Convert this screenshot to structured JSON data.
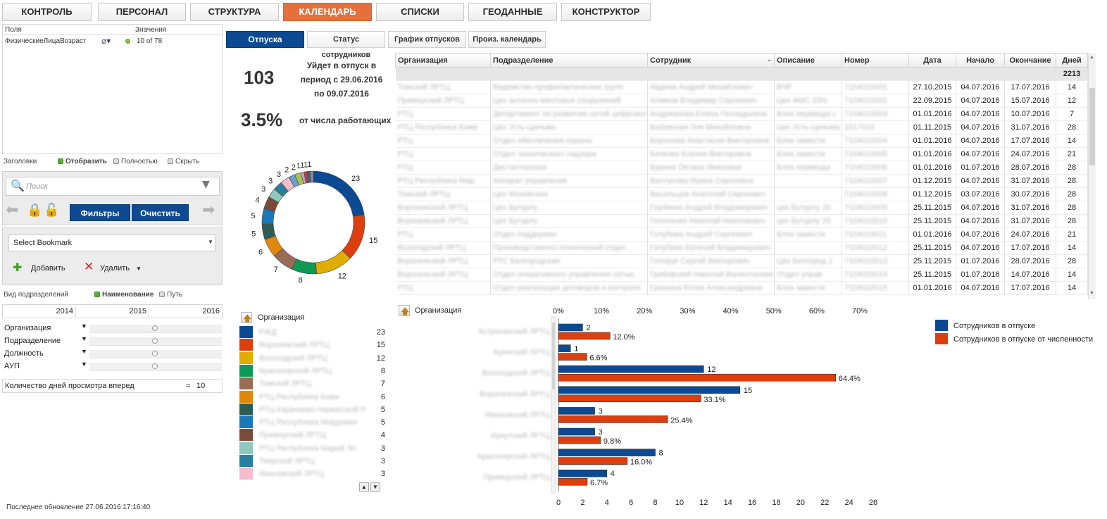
{
  "top_tabs": [
    {
      "label": "КОНТРОЛЬ",
      "active": false
    },
    {
      "label": "ПЕРСОНАЛ",
      "active": false
    },
    {
      "label": "СТРУКТУРА",
      "active": false
    },
    {
      "label": "КАЛЕНДАРЬ",
      "active": true
    },
    {
      "label": "СПИСКИ",
      "active": false
    },
    {
      "label": "ГЕОДАННЫЕ",
      "active": false
    },
    {
      "label": "КОНСТРУКТОР",
      "active": false
    }
  ],
  "fields_panel": {
    "col_fields": "Поля",
    "col_values": "Значения",
    "field_name": "ФизическиеЛицаВозраст",
    "field_value": "10 of 78"
  },
  "headers_option": {
    "label": "Заголовки",
    "options": [
      "Отобразить",
      "Полностью",
      "Скрыть"
    ],
    "selected": "Отобразить"
  },
  "search": {
    "placeholder": "Поиск"
  },
  "buttons": {
    "filters": "Фильтры",
    "clear": "Очистить",
    "add": "Добавить",
    "delete": "Удалить"
  },
  "bookmark": {
    "value": "Select Bookmark"
  },
  "division_view": {
    "label": "Вид подразделений",
    "options": [
      "Наименование",
      "Путь"
    ],
    "selected": "Наименование"
  },
  "years": [
    "2014",
    "2015",
    "2016"
  ],
  "dimensions": [
    "Организация",
    "Подразделение",
    "Должность",
    "АУП"
  ],
  "lookahead": {
    "label": "Количество дней просмотра вперед",
    "operator": "=",
    "value": "10"
  },
  "last_update": "Последнее обновление 27.06.2016 17:16:40",
  "sub_tabs": [
    {
      "label": "Отпуска",
      "active": true
    },
    {
      "label": "Статус сотрудников",
      "active": false
    },
    {
      "label": "График отпусков",
      "active": false
    },
    {
      "label": "Произ. календарь",
      "active": false
    }
  ],
  "kpi": {
    "count": "103",
    "count_text": [
      "Уйдет в отпуск в",
      "период с 29.06.2016",
      "по 09.07.2016"
    ],
    "percent": "3.5%",
    "percent_text": "от числа работающих"
  },
  "colors": {
    "accent_orange": "#e5703c",
    "blue": "#0d4a92",
    "red": "#dd3e0e"
  },
  "donut": {
    "values": [
      23,
      15,
      12,
      8,
      7,
      6,
      5,
      5,
      4,
      3,
      3,
      3,
      2,
      2,
      1,
      1,
      1,
      1
    ],
    "colors": [
      "#0b4a93",
      "#dd3e0e",
      "#e0ad00",
      "#0e9a55",
      "#9a6b55",
      "#e0880c",
      "#2f5b55",
      "#1a77ba",
      "#7a4a3a",
      "#8ec9be",
      "#2a7fa0",
      "#f6bccc",
      "#6aa0d0",
      "#a9c64c",
      "#c8a0c8",
      "#c04040",
      "#406090",
      "#909090"
    ],
    "labels": [
      "23",
      "15",
      "12",
      "8",
      "7",
      "6",
      "5",
      "5",
      "4",
      "3",
      "3",
      "3",
      "2",
      "2",
      "1",
      "1",
      "1",
      "1"
    ]
  },
  "org_legend": {
    "title": "Организация",
    "items": [
      {
        "name": "РЖД",
        "value": "23",
        "color": "#0b4a93"
      },
      {
        "name": "Воронежский ЛРТЦ",
        "value": "15",
        "color": "#dd3e0e"
      },
      {
        "name": "Вологодский ЛРТЦ",
        "value": "12",
        "color": "#e0ad00"
      },
      {
        "name": "Красноярский ЛРТЦ",
        "value": "8",
        "color": "#0e9a55"
      },
      {
        "name": "Томский ЛРТЦ",
        "value": "7",
        "color": "#9a6b55"
      },
      {
        "name": "РТЦ Республика Коми",
        "value": "6",
        "color": "#e0880c"
      },
      {
        "name": "РТЦ Карачаево-Черкесской Р.",
        "value": "5",
        "color": "#2f5b55"
      },
      {
        "name": "РТЦ Республика Мордовия",
        "value": "5",
        "color": "#1a77ba"
      },
      {
        "name": "Приморский ЛРТЦ",
        "value": "4",
        "color": "#7a4a3a"
      },
      {
        "name": "РТЦ Республика Марий Эл",
        "value": "3",
        "color": "#8ec9be"
      },
      {
        "name": "Тверской ЛРТЦ",
        "value": "3",
        "color": "#2a7fa0"
      },
      {
        "name": "Ивановский ЛРТЦ",
        "value": "3",
        "color": "#f6bccc"
      }
    ]
  },
  "table": {
    "columns": [
      "Организация",
      "Подразделение",
      "Сотрудник",
      "Описание",
      "Номер",
      "Дата",
      "Начало",
      "Окончание",
      "Дней"
    ],
    "total_days": "2213",
    "rows": [
      [
        "Томский ЛРТЦ",
        "Ведомство профилактических групп",
        "Авдеев Андрей Михайлович",
        "ВЧР",
        "7104010001",
        "27.10.2015",
        "04.07.2016",
        "17.07.2016",
        "14"
      ],
      [
        "Приморский ЛРТЦ",
        "Цех антенно-мачтовых сооружений",
        "Алимов Владимир Сергеевич",
        "Цех АМС 33%",
        "7104010002",
        "22.09.2015",
        "04.07.2016",
        "15.07.2016",
        "12"
      ],
      [
        "РТЦ",
        "Департамент по развитию сетей цифрового",
        "Андрианова Елена Геннадьевна",
        "Блок перевода с",
        "7104010003",
        "01.01.2016",
        "04.07.2016",
        "10.07.2016",
        "7"
      ],
      [
        "РТЦ Республика Коми",
        "Цех Усть-Цильма",
        "Бобовская Лия Михайловна",
        "Цех Усть-Цильма",
        "1517016",
        "01.11.2015",
        "04.07.2016",
        "31.07.2016",
        "28"
      ],
      [
        "РТЦ",
        "Отдел обеспечения охраны",
        "Боронова Анастасия Викторовна",
        "Блок замести",
        "7104010004",
        "01.01.2016",
        "04.07.2016",
        "17.07.2016",
        "14"
      ],
      [
        "РТЦ",
        "Отдел технического надзора",
        "Бочкова Ксения Викторовна",
        "Блок замести",
        "7104010005",
        "01.01.2016",
        "04.07.2016",
        "24.07.2016",
        "21"
      ],
      [
        "РТЦ",
        "Дистанторская",
        "Бурина Оксана Ивановна",
        "Блок перевода",
        "7104010006",
        "01.01.2016",
        "01.07.2016",
        "28.07.2016",
        "28"
      ],
      [
        "РТЦ Республика Мар.",
        "Аппарат управления",
        "Валтусова Ирина Сергеевна",
        "",
        "7104010007",
        "01.12.2015",
        "04.07.2016",
        "31.07.2016",
        "28"
      ],
      [
        "Томский ЛРТЦ",
        "Цех Моховская",
        "Васильцов Анатолий Сергеевич",
        "",
        "7104010008",
        "01.12.2015",
        "03.07.2016",
        "30.07.2016",
        "28"
      ],
      [
        "Воронежский ЛРТЦ",
        "Цех Бутурлу",
        "Горбенко Андрей Владимирович",
        "цех Бутурлу 20",
        "7104010009",
        "25.11.2015",
        "04.07.2016",
        "31.07.2016",
        "28"
      ],
      [
        "Воронежский ЛРТЦ",
        "Цех Бутурлу",
        "Голоненко Николай Николаевич",
        "цех Бутурлу 20",
        "7104010010",
        "25.11.2015",
        "04.07.2016",
        "31.07.2016",
        "28"
      ],
      [
        "РТЦ",
        "Отдел поддержки",
        "Голубева Андрей Сергеевич",
        "Блок замести",
        "7104010011",
        "01.01.2016",
        "04.07.2016",
        "24.07.2016",
        "21"
      ],
      [
        "Вологодский ЛРТЦ",
        "Производственно-технический отдел",
        "Голубева Евгений Владимирович",
        "",
        "7104010012",
        "25.11.2015",
        "04.07.2016",
        "17.07.2016",
        "14"
      ],
      [
        "Воронежский ЛРТЦ",
        "РТС Белгородская",
        "Голорук Сергей Викторович",
        "Цех Белгород 1",
        "7104010013",
        "25.11.2015",
        "01.07.2016",
        "28.07.2016",
        "28"
      ],
      [
        "Воронежский ЛРТЦ",
        "Отдел оперативного управления сетью",
        "Грибовский Николай Валентинович",
        "Отдел управ",
        "7104010014",
        "25.11.2015",
        "01.07.2016",
        "14.07.2016",
        "14"
      ],
      [
        "РТЦ",
        "Отдел реализации договоров и контроля",
        "Гришина Юлия Александровна",
        "Блок замести",
        "7104010015",
        "01.01.2016",
        "04.07.2016",
        "17.07.2016",
        "14"
      ]
    ]
  },
  "bar_chart": {
    "org_label": "Организация",
    "legend": [
      "Сотрудников в отпуске",
      "Сотрудников в отпуске от численности"
    ]
  },
  "chart_data": {
    "type": "bar",
    "orientation": "horizontal",
    "categories": [
      "Астраханский ЛРТЦ",
      "Брянский ЛРТЦ",
      "Вологодский ЛРТЦ",
      "Воронежский ЛРТЦ",
      "Ивановский ЛРТЦ",
      "Иркутский ЛРТЦ",
      "Красноярский ЛРТЦ",
      "Приморский ЛРТЦ"
    ],
    "series": [
      {
        "name": "Сотрудников в отпуске",
        "values": [
          2,
          1,
          12,
          15,
          3,
          3,
          8,
          4
        ],
        "labels": [
          "2",
          "1",
          "12",
          "15",
          "3",
          "3",
          "8",
          "4"
        ],
        "color": "#0b4a93",
        "axis": "bottom"
      },
      {
        "name": "Сотрудников в отпуске от численности",
        "values": [
          12.0,
          6.6,
          64.4,
          33.1,
          25.4,
          9.8,
          16.0,
          6.7
        ],
        "labels": [
          "12.0%",
          "6.6%",
          "64.4%",
          "33.1%",
          "25.4%",
          "9.8%",
          "16.0%",
          "6.7%"
        ],
        "color": "#dd3e0e",
        "axis": "top"
      }
    ],
    "bottom_axis": {
      "range": [
        0,
        26
      ],
      "ticks": [
        "0",
        "2",
        "4",
        "6",
        "8",
        "10",
        "12",
        "14",
        "16",
        "18",
        "20",
        "22",
        "24",
        "26"
      ]
    },
    "top_axis": {
      "range": [
        0,
        70
      ],
      "ticks": [
        "0%",
        "10%",
        "20%",
        "30%",
        "40%",
        "50%",
        "60%",
        "70%"
      ]
    },
    "legend_position": "top-right",
    "grid": false
  }
}
